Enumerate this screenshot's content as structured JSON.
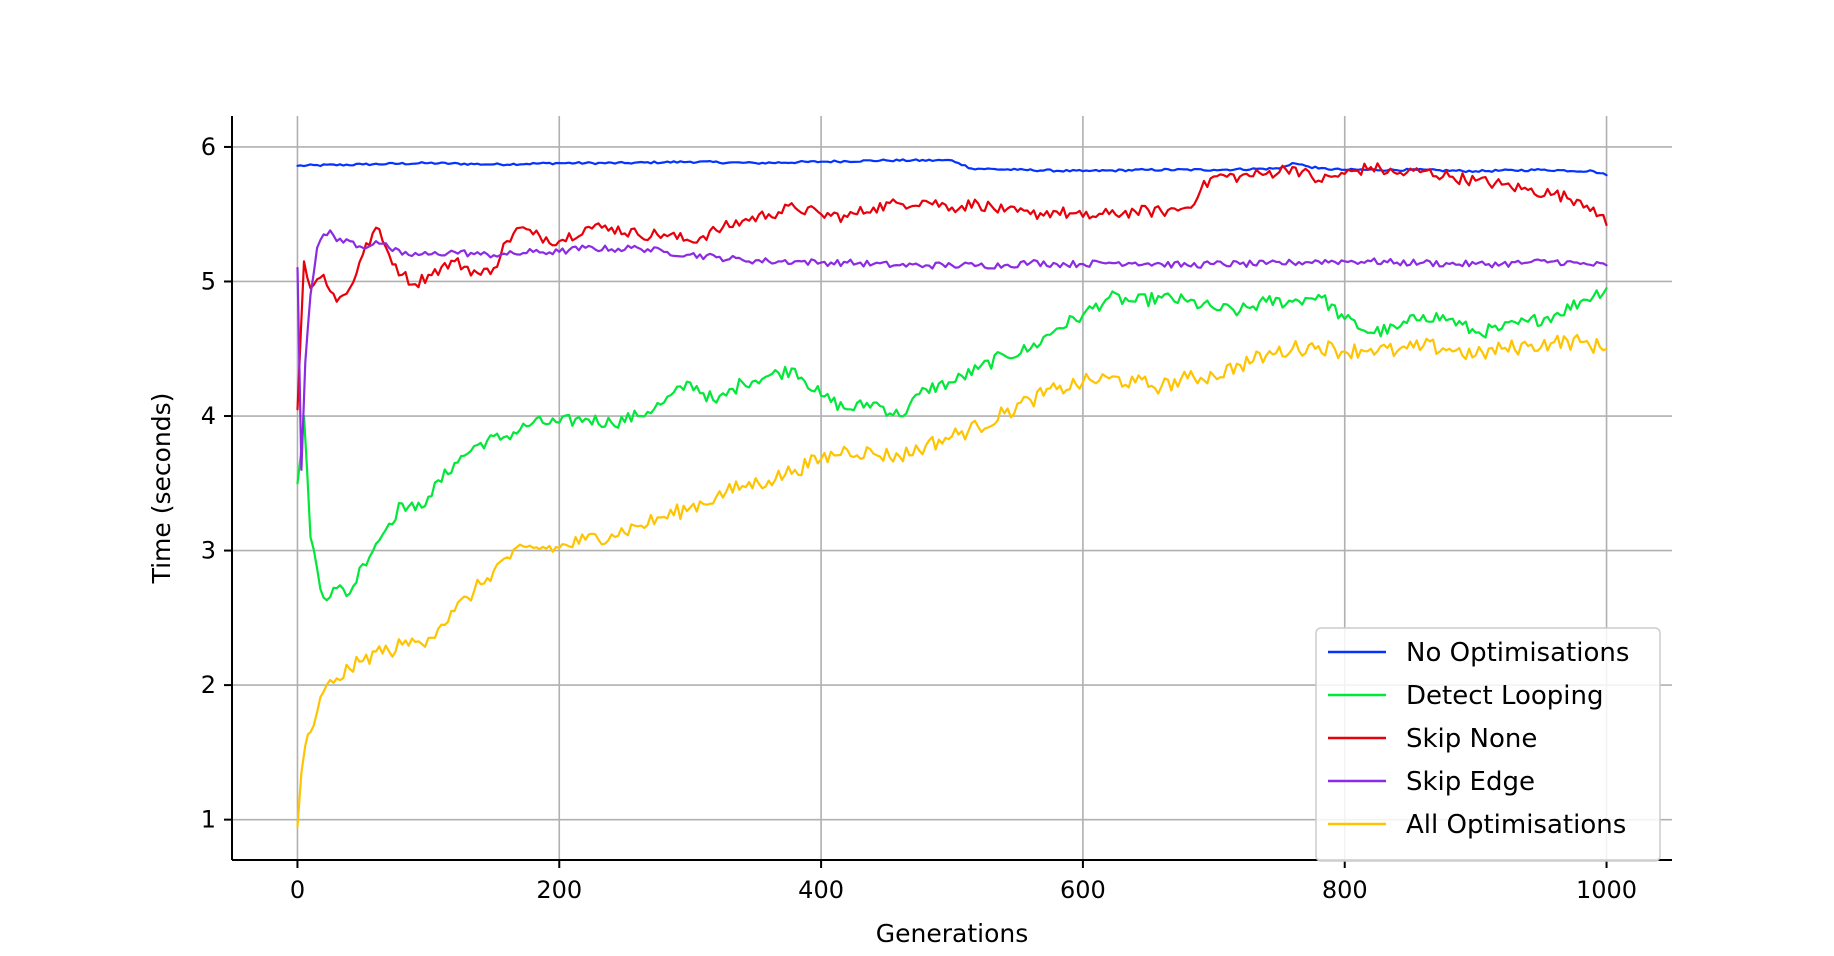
{
  "chart_data": {
    "type": "line",
    "title": "",
    "xlabel": "Generations",
    "ylabel": "Time (seconds)",
    "xlim": [
      -50,
      1050
    ],
    "ylim": [
      0.7,
      6.23
    ],
    "xticks": [
      0,
      200,
      400,
      600,
      800,
      1000
    ],
    "yticks": [
      1,
      2,
      3,
      4,
      5,
      6
    ],
    "grid": true,
    "legend_position": "bottom-right",
    "series": [
      {
        "name": "No Optimisations",
        "color": "#0433ff",
        "x": [
          0,
          50,
          100,
          150,
          200,
          250,
          300,
          350,
          400,
          450,
          500,
          505,
          515,
          550,
          600,
          650,
          700,
          750,
          760,
          770,
          780,
          800,
          850,
          900,
          950,
          990,
          1000
        ],
        "values": [
          5.86,
          5.87,
          5.88,
          5.87,
          5.88,
          5.88,
          5.89,
          5.88,
          5.89,
          5.9,
          5.9,
          5.88,
          5.84,
          5.83,
          5.82,
          5.83,
          5.83,
          5.84,
          5.88,
          5.86,
          5.84,
          5.83,
          5.83,
          5.82,
          5.83,
          5.82,
          5.79
        ]
      },
      {
        "name": "Detect Looping",
        "color": "#00e838",
        "x": [
          0,
          5,
          10,
          20,
          30,
          40,
          50,
          60,
          70,
          80,
          90,
          100,
          120,
          140,
          160,
          180,
          200,
          220,
          240,
          260,
          280,
          300,
          320,
          340,
          360,
          380,
          400,
          420,
          440,
          460,
          480,
          500,
          520,
          540,
          560,
          580,
          600,
          620,
          640,
          660,
          680,
          700,
          720,
          740,
          760,
          780,
          800,
          820,
          840,
          860,
          880,
          900,
          920,
          940,
          960,
          980,
          1000
        ],
        "values": [
          3.5,
          4.0,
          3.1,
          2.65,
          2.72,
          2.68,
          2.9,
          3.05,
          3.2,
          3.35,
          3.3,
          3.4,
          3.65,
          3.8,
          3.85,
          3.95,
          3.95,
          3.98,
          3.95,
          4.0,
          4.1,
          4.25,
          4.1,
          4.25,
          4.3,
          4.35,
          4.15,
          4.05,
          4.1,
          4.0,
          4.2,
          4.25,
          4.35,
          4.45,
          4.5,
          4.65,
          4.75,
          4.88,
          4.85,
          4.88,
          4.85,
          4.8,
          4.78,
          4.85,
          4.85,
          4.9,
          4.72,
          4.62,
          4.65,
          4.75,
          4.72,
          4.62,
          4.65,
          4.7,
          4.75,
          4.85,
          4.95
        ]
      },
      {
        "name": "Skip None",
        "color": "#e8000b",
        "x": [
          0,
          5,
          10,
          20,
          30,
          40,
          50,
          60,
          70,
          80,
          90,
          100,
          120,
          140,
          150,
          160,
          170,
          180,
          200,
          220,
          240,
          260,
          280,
          300,
          320,
          340,
          360,
          380,
          400,
          420,
          440,
          460,
          480,
          500,
          520,
          540,
          560,
          580,
          600,
          620,
          640,
          660,
          680,
          690,
          700,
          720,
          740,
          760,
          780,
          800,
          820,
          840,
          860,
          880,
          900,
          920,
          940,
          960,
          980,
          990,
          1000
        ],
        "values": [
          4.05,
          5.15,
          4.95,
          5.05,
          4.85,
          4.95,
          5.2,
          5.4,
          5.2,
          5.05,
          4.98,
          5.05,
          5.15,
          5.05,
          5.1,
          5.3,
          5.4,
          5.35,
          5.3,
          5.4,
          5.4,
          5.35,
          5.35,
          5.3,
          5.38,
          5.45,
          5.5,
          5.55,
          5.5,
          5.48,
          5.55,
          5.58,
          5.6,
          5.55,
          5.58,
          5.52,
          5.5,
          5.52,
          5.48,
          5.5,
          5.52,
          5.52,
          5.55,
          5.68,
          5.78,
          5.78,
          5.8,
          5.85,
          5.75,
          5.8,
          5.85,
          5.8,
          5.82,
          5.78,
          5.75,
          5.72,
          5.68,
          5.65,
          5.6,
          5.55,
          5.42
        ]
      },
      {
        "name": "Skip Edge",
        "color": "#8b2be2",
        "x": [
          0,
          3,
          6,
          10,
          15,
          20,
          25,
          30,
          40,
          50,
          60,
          70,
          80,
          100,
          120,
          140,
          160,
          180,
          200,
          220,
          240,
          260,
          280,
          300,
          320,
          340,
          360,
          380,
          400,
          420,
          440,
          460,
          480,
          500,
          520,
          540,
          560,
          580,
          600,
          620,
          640,
          660,
          680,
          700,
          720,
          740,
          760,
          780,
          800,
          820,
          840,
          860,
          880,
          900,
          920,
          940,
          960,
          980,
          1000
        ],
        "values": [
          5.1,
          3.6,
          4.4,
          4.9,
          5.25,
          5.35,
          5.38,
          5.3,
          5.3,
          5.25,
          5.3,
          5.25,
          5.2,
          5.2,
          5.22,
          5.2,
          5.2,
          5.22,
          5.22,
          5.25,
          5.24,
          5.25,
          5.22,
          5.2,
          5.18,
          5.16,
          5.15,
          5.15,
          5.14,
          5.14,
          5.13,
          5.12,
          5.12,
          5.12,
          5.12,
          5.12,
          5.14,
          5.13,
          5.13,
          5.14,
          5.14,
          5.13,
          5.12,
          5.13,
          5.13,
          5.13,
          5.14,
          5.15,
          5.15,
          5.15,
          5.14,
          5.14,
          5.13,
          5.13,
          5.13,
          5.14,
          5.15,
          5.13,
          5.12
        ]
      },
      {
        "name": "All Optimisations",
        "color": "#ffc400",
        "x": [
          0,
          3,
          6,
          10,
          15,
          20,
          30,
          40,
          50,
          60,
          70,
          80,
          90,
          100,
          110,
          120,
          130,
          140,
          150,
          160,
          180,
          200,
          220,
          240,
          260,
          280,
          300,
          320,
          340,
          360,
          380,
          400,
          420,
          440,
          460,
          480,
          500,
          520,
          540,
          560,
          580,
          600,
          620,
          640,
          660,
          680,
          700,
          720,
          740,
          760,
          780,
          800,
          820,
          840,
          860,
          880,
          900,
          920,
          940,
          960,
          980,
          1000
        ],
        "values": [
          0.95,
          1.35,
          1.55,
          1.65,
          1.8,
          1.95,
          2.05,
          2.12,
          2.18,
          2.25,
          2.25,
          2.3,
          2.32,
          2.35,
          2.45,
          2.55,
          2.65,
          2.75,
          2.85,
          2.95,
          3.02,
          3.02,
          3.08,
          3.12,
          3.18,
          3.25,
          3.32,
          3.4,
          3.48,
          3.52,
          3.6,
          3.68,
          3.75,
          3.72,
          3.7,
          3.78,
          3.85,
          3.92,
          4.02,
          4.12,
          4.2,
          4.25,
          4.28,
          4.25,
          4.22,
          4.28,
          4.3,
          4.38,
          4.45,
          4.5,
          4.52,
          4.48,
          4.5,
          4.48,
          4.52,
          4.5,
          4.45,
          4.5,
          4.52,
          4.55,
          4.55,
          4.5
        ]
      }
    ]
  }
}
